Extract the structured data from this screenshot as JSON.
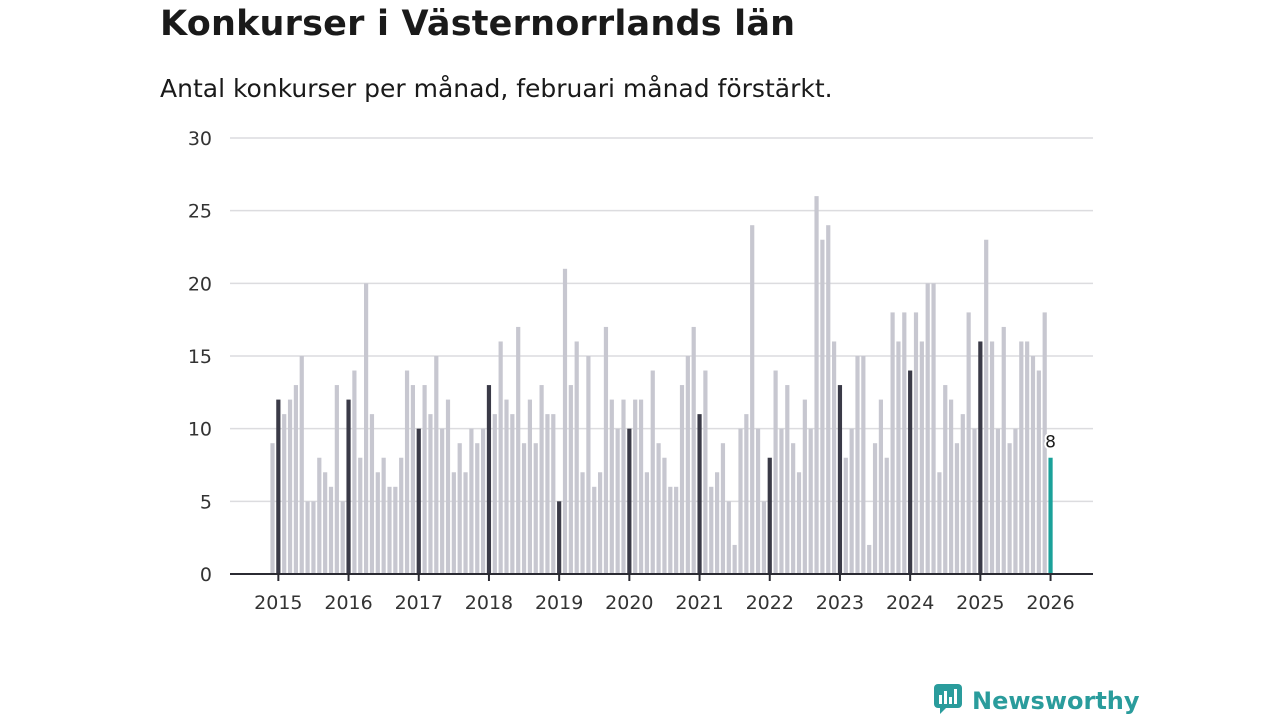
{
  "header": {
    "title": "Konkurser i Västernorrlands län",
    "subtitle": "Antal konkurser per månad, februari månad förstärkt."
  },
  "brand": {
    "name": "Newsworthy"
  },
  "colors": {
    "bar": "#c7c7d0",
    "highlight": "#3a3a47",
    "latest": "#1aa19a",
    "brand": "#2a9c9c"
  },
  "chart_data": {
    "type": "bar",
    "title": "Konkurser i Västernorrlands län",
    "subtitle": "Antal konkurser per månad, februari månad förstärkt.",
    "xlabel": "",
    "ylabel": "",
    "ylim": [
      0,
      30
    ],
    "yticks": [
      0,
      5,
      10,
      15,
      20,
      25,
      30
    ],
    "grid": true,
    "start_year": 2015,
    "start_month": 1,
    "highlight_month": 2,
    "year_labels": [
      "2015",
      "2016",
      "2017",
      "2018",
      "2019",
      "2020",
      "2021",
      "2022",
      "2023",
      "2024",
      "2025",
      "2026"
    ],
    "latest_label": "8",
    "values": [
      9,
      12,
      11,
      12,
      13,
      15,
      5,
      5,
      8,
      7,
      6,
      13,
      5,
      12,
      14,
      8,
      20,
      11,
      7,
      8,
      6,
      6,
      8,
      14,
      13,
      10,
      13,
      11,
      15,
      10,
      12,
      7,
      9,
      7,
      10,
      9,
      10,
      13,
      11,
      16,
      12,
      11,
      17,
      9,
      12,
      9,
      13,
      11,
      11,
      5,
      21,
      13,
      16,
      7,
      15,
      6,
      7,
      17,
      12,
      10,
      12,
      10,
      12,
      12,
      7,
      14,
      9,
      8,
      6,
      6,
      13,
      15,
      17,
      11,
      14,
      6,
      7,
      9,
      5,
      2,
      10,
      11,
      24,
      10,
      5,
      8,
      14,
      10,
      13,
      9,
      7,
      12,
      10,
      26,
      23,
      24,
      16,
      13,
      8,
      10,
      15,
      15,
      2,
      9,
      12,
      8,
      18,
      16,
      18,
      14,
      18,
      16,
      20,
      20,
      7,
      13,
      12,
      9,
      11,
      18,
      10,
      16,
      23,
      16,
      10,
      17,
      9,
      10,
      16,
      16,
      15,
      14,
      18,
      8
    ]
  }
}
